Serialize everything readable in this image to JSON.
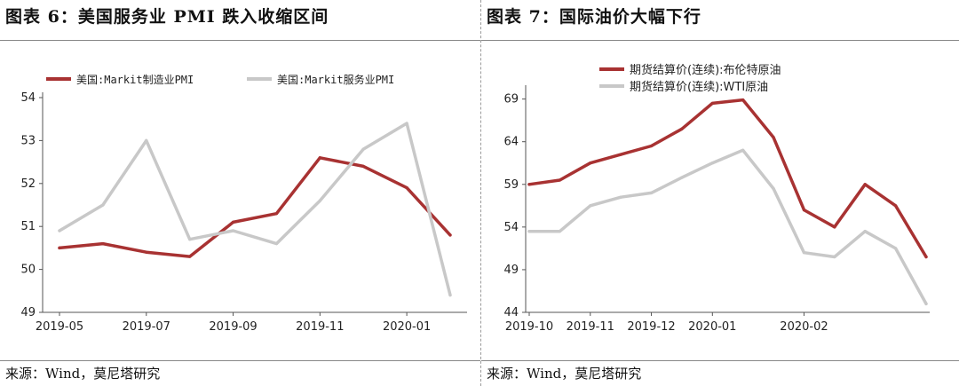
{
  "left": {
    "title": "图表 6：美国服务业 PMI 跌入收缩区间",
    "source": "来源：Wind，莫尼塔研究"
  },
  "right": {
    "title": "图表 7：国际油价大幅下行",
    "source": "来源：Wind，莫尼塔研究"
  },
  "colors": {
    "series1": "#a83232",
    "series2": "#c8c8c8",
    "axis": "#555555"
  },
  "chart_data": [
    {
      "type": "line",
      "x": [
        "2019-05",
        "2019-06",
        "2019-07",
        "2019-08",
        "2019-09",
        "2019-10",
        "2019-11",
        "2019-12",
        "2020-01",
        "2020-02"
      ],
      "xticks": [
        "2019-05",
        "2019-07",
        "2019-09",
        "2019-11",
        "2020-01"
      ],
      "yticks": [
        "49",
        "50",
        "51",
        "52",
        "53",
        "54"
      ],
      "ylim": [
        49,
        54
      ],
      "grid": false,
      "legend_position": "top",
      "series": [
        {
          "name": "美国:Markit制造业PMI",
          "values": [
            50.5,
            50.6,
            50.4,
            50.3,
            51.1,
            51.3,
            52.6,
            52.4,
            51.9,
            50.8
          ]
        },
        {
          "name": "美国:Markit服务业PMI",
          "values": [
            50.9,
            51.5,
            53.0,
            50.7,
            50.9,
            50.6,
            51.6,
            52.8,
            53.4,
            49.4
          ]
        }
      ]
    },
    {
      "type": "line",
      "x": [
        "2019-10-01",
        "2019-10-15",
        "2019-11-01",
        "2019-11-15",
        "2019-12-01",
        "2019-12-15",
        "2020-01-01",
        "2020-01-08",
        "2020-01-15",
        "2020-02-01",
        "2020-02-15",
        "2020-03-01",
        "2020-03-06",
        "2020-03-11"
      ],
      "xticks": [
        "2019-10",
        "2019-11",
        "2019-12",
        "2020-01",
        "2020-02"
      ],
      "yticks": [
        "44",
        "49",
        "54",
        "59",
        "64",
        "69"
      ],
      "ylim": [
        44,
        70
      ],
      "grid": false,
      "legend_position": "top",
      "series": [
        {
          "name": "期货结算价(连续):布伦特原油",
          "values": [
            59.0,
            59.5,
            61.5,
            62.5,
            63.5,
            65.5,
            68.5,
            68.9,
            64.5,
            56.0,
            54.0,
            59.0,
            56.5,
            50.5
          ]
        },
        {
          "name": "期货结算价(连续):WTI原油",
          "values": [
            53.5,
            53.5,
            56.5,
            57.5,
            58.0,
            59.8,
            61.5,
            63.0,
            58.5,
            51.0,
            50.5,
            53.5,
            51.5,
            45.0
          ]
        }
      ]
    }
  ]
}
